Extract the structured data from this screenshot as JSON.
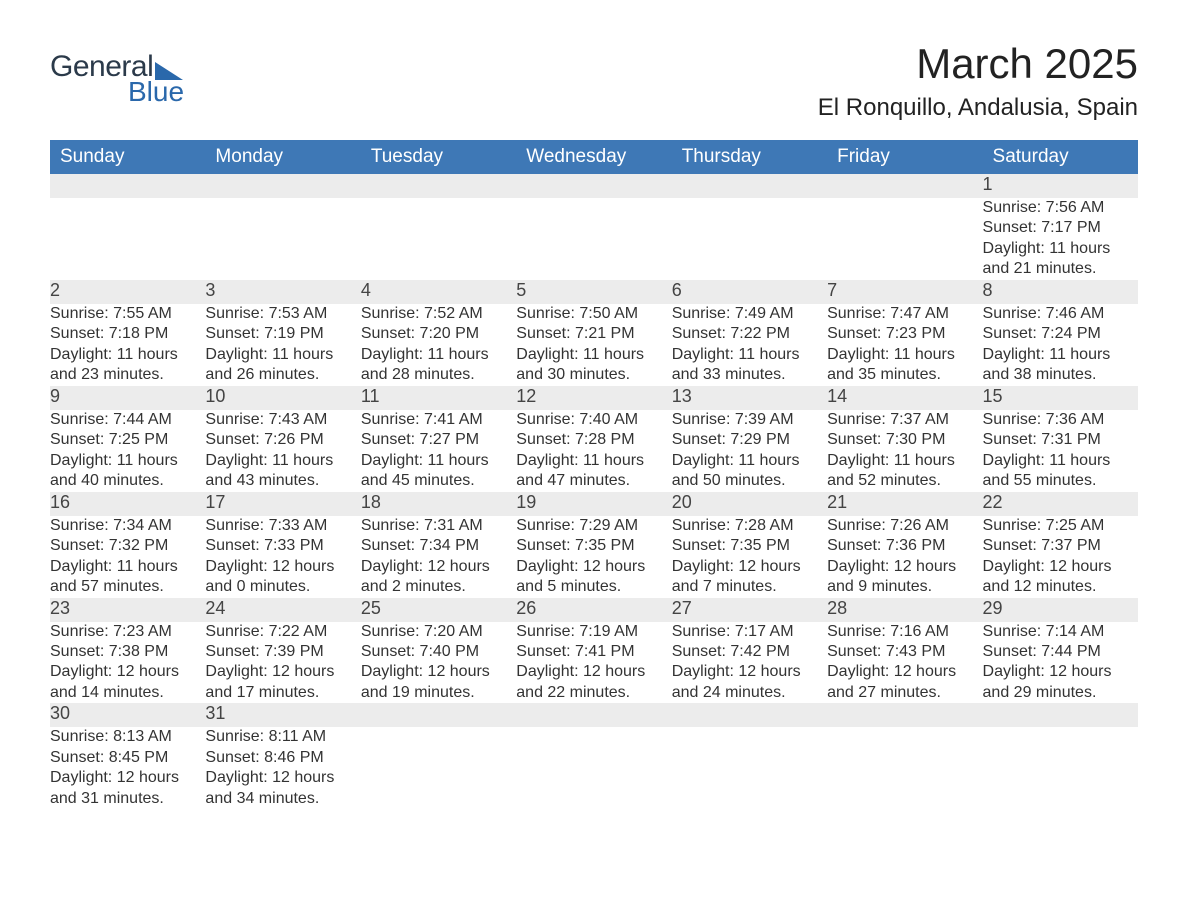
{
  "logo": {
    "text1": "General",
    "text2": "Blue"
  },
  "title": "March 2025",
  "location": "El Ronquillo, Andalusia, Spain",
  "colors": {
    "header_bg": "#3e78b6",
    "header_text": "#ffffff",
    "daynum_bg": "#ececec",
    "row_border": "#3e78b6",
    "body_text": "#333333",
    "logo_accent": "#2a68ab"
  },
  "weekdays": [
    "Sunday",
    "Monday",
    "Tuesday",
    "Wednesday",
    "Thursday",
    "Friday",
    "Saturday"
  ],
  "weeks": [
    [
      null,
      null,
      null,
      null,
      null,
      null,
      {
        "n": "1",
        "sr": "Sunrise: 7:56 AM",
        "ss": "Sunset: 7:17 PM",
        "d1": "Daylight: 11 hours",
        "d2": "and 21 minutes."
      }
    ],
    [
      {
        "n": "2",
        "sr": "Sunrise: 7:55 AM",
        "ss": "Sunset: 7:18 PM",
        "d1": "Daylight: 11 hours",
        "d2": "and 23 minutes."
      },
      {
        "n": "3",
        "sr": "Sunrise: 7:53 AM",
        "ss": "Sunset: 7:19 PM",
        "d1": "Daylight: 11 hours",
        "d2": "and 26 minutes."
      },
      {
        "n": "4",
        "sr": "Sunrise: 7:52 AM",
        "ss": "Sunset: 7:20 PM",
        "d1": "Daylight: 11 hours",
        "d2": "and 28 minutes."
      },
      {
        "n": "5",
        "sr": "Sunrise: 7:50 AM",
        "ss": "Sunset: 7:21 PM",
        "d1": "Daylight: 11 hours",
        "d2": "and 30 minutes."
      },
      {
        "n": "6",
        "sr": "Sunrise: 7:49 AM",
        "ss": "Sunset: 7:22 PM",
        "d1": "Daylight: 11 hours",
        "d2": "and 33 minutes."
      },
      {
        "n": "7",
        "sr": "Sunrise: 7:47 AM",
        "ss": "Sunset: 7:23 PM",
        "d1": "Daylight: 11 hours",
        "d2": "and 35 minutes."
      },
      {
        "n": "8",
        "sr": "Sunrise: 7:46 AM",
        "ss": "Sunset: 7:24 PM",
        "d1": "Daylight: 11 hours",
        "d2": "and 38 minutes."
      }
    ],
    [
      {
        "n": "9",
        "sr": "Sunrise: 7:44 AM",
        "ss": "Sunset: 7:25 PM",
        "d1": "Daylight: 11 hours",
        "d2": "and 40 minutes."
      },
      {
        "n": "10",
        "sr": "Sunrise: 7:43 AM",
        "ss": "Sunset: 7:26 PM",
        "d1": "Daylight: 11 hours",
        "d2": "and 43 minutes."
      },
      {
        "n": "11",
        "sr": "Sunrise: 7:41 AM",
        "ss": "Sunset: 7:27 PM",
        "d1": "Daylight: 11 hours",
        "d2": "and 45 minutes."
      },
      {
        "n": "12",
        "sr": "Sunrise: 7:40 AM",
        "ss": "Sunset: 7:28 PM",
        "d1": "Daylight: 11 hours",
        "d2": "and 47 minutes."
      },
      {
        "n": "13",
        "sr": "Sunrise: 7:39 AM",
        "ss": "Sunset: 7:29 PM",
        "d1": "Daylight: 11 hours",
        "d2": "and 50 minutes."
      },
      {
        "n": "14",
        "sr": "Sunrise: 7:37 AM",
        "ss": "Sunset: 7:30 PM",
        "d1": "Daylight: 11 hours",
        "d2": "and 52 minutes."
      },
      {
        "n": "15",
        "sr": "Sunrise: 7:36 AM",
        "ss": "Sunset: 7:31 PM",
        "d1": "Daylight: 11 hours",
        "d2": "and 55 minutes."
      }
    ],
    [
      {
        "n": "16",
        "sr": "Sunrise: 7:34 AM",
        "ss": "Sunset: 7:32 PM",
        "d1": "Daylight: 11 hours",
        "d2": "and 57 minutes."
      },
      {
        "n": "17",
        "sr": "Sunrise: 7:33 AM",
        "ss": "Sunset: 7:33 PM",
        "d1": "Daylight: 12 hours",
        "d2": "and 0 minutes."
      },
      {
        "n": "18",
        "sr": "Sunrise: 7:31 AM",
        "ss": "Sunset: 7:34 PM",
        "d1": "Daylight: 12 hours",
        "d2": "and 2 minutes."
      },
      {
        "n": "19",
        "sr": "Sunrise: 7:29 AM",
        "ss": "Sunset: 7:35 PM",
        "d1": "Daylight: 12 hours",
        "d2": "and 5 minutes."
      },
      {
        "n": "20",
        "sr": "Sunrise: 7:28 AM",
        "ss": "Sunset: 7:35 PM",
        "d1": "Daylight: 12 hours",
        "d2": "and 7 minutes."
      },
      {
        "n": "21",
        "sr": "Sunrise: 7:26 AM",
        "ss": "Sunset: 7:36 PM",
        "d1": "Daylight: 12 hours",
        "d2": "and 9 minutes."
      },
      {
        "n": "22",
        "sr": "Sunrise: 7:25 AM",
        "ss": "Sunset: 7:37 PM",
        "d1": "Daylight: 12 hours",
        "d2": "and 12 minutes."
      }
    ],
    [
      {
        "n": "23",
        "sr": "Sunrise: 7:23 AM",
        "ss": "Sunset: 7:38 PM",
        "d1": "Daylight: 12 hours",
        "d2": "and 14 minutes."
      },
      {
        "n": "24",
        "sr": "Sunrise: 7:22 AM",
        "ss": "Sunset: 7:39 PM",
        "d1": "Daylight: 12 hours",
        "d2": "and 17 minutes."
      },
      {
        "n": "25",
        "sr": "Sunrise: 7:20 AM",
        "ss": "Sunset: 7:40 PM",
        "d1": "Daylight: 12 hours",
        "d2": "and 19 minutes."
      },
      {
        "n": "26",
        "sr": "Sunrise: 7:19 AM",
        "ss": "Sunset: 7:41 PM",
        "d1": "Daylight: 12 hours",
        "d2": "and 22 minutes."
      },
      {
        "n": "27",
        "sr": "Sunrise: 7:17 AM",
        "ss": "Sunset: 7:42 PM",
        "d1": "Daylight: 12 hours",
        "d2": "and 24 minutes."
      },
      {
        "n": "28",
        "sr": "Sunrise: 7:16 AM",
        "ss": "Sunset: 7:43 PM",
        "d1": "Daylight: 12 hours",
        "d2": "and 27 minutes."
      },
      {
        "n": "29",
        "sr": "Sunrise: 7:14 AM",
        "ss": "Sunset: 7:44 PM",
        "d1": "Daylight: 12 hours",
        "d2": "and 29 minutes."
      }
    ],
    [
      {
        "n": "30",
        "sr": "Sunrise: 8:13 AM",
        "ss": "Sunset: 8:45 PM",
        "d1": "Daylight: 12 hours",
        "d2": "and 31 minutes."
      },
      {
        "n": "31",
        "sr": "Sunrise: 8:11 AM",
        "ss": "Sunset: 8:46 PM",
        "d1": "Daylight: 12 hours",
        "d2": "and 34 minutes."
      },
      null,
      null,
      null,
      null,
      null
    ]
  ]
}
